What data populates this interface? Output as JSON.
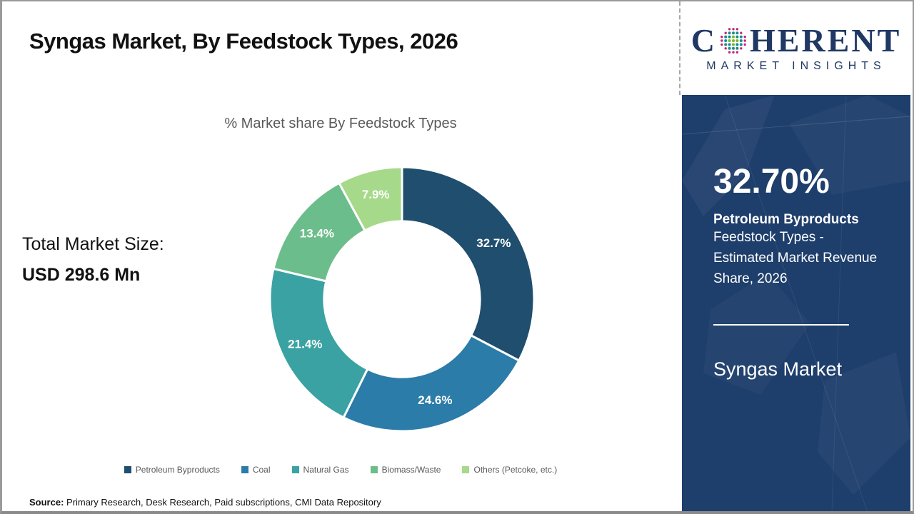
{
  "header": {
    "title": "Syngas Market, By Feedstock Types, 2026"
  },
  "logo": {
    "word_start": "C",
    "word_end": "HERENT",
    "subtitle": "MARKET INSIGHTS",
    "navy": "#1F3864",
    "globe_colors": {
      "outer": "#C2257C",
      "mid": "#1C8C8C",
      "center": "#76B82A"
    }
  },
  "chart": {
    "subtitle": "% Market share By Feedstock Types",
    "total_label": "Total Market Size:",
    "total_value": "USD 298.6 Mn"
  },
  "chart_data": {
    "type": "pie",
    "donut": true,
    "title": "% Market share By Feedstock Types",
    "categories": [
      "Petroleum Byproducts",
      "Coal",
      "Natural Gas",
      "Biomass/Waste",
      "Others (Petcoke, etc.)"
    ],
    "values": [
      32.7,
      24.6,
      21.4,
      13.4,
      7.9
    ],
    "slice_labels": [
      "32.7%",
      "24.6%",
      "21.4%",
      "13.4%",
      "7.9%"
    ],
    "colors": [
      "#1F4E6E",
      "#2B7CA9",
      "#3AA2A2",
      "#6CBD8C",
      "#A6D98A"
    ],
    "start_angle_deg": 0,
    "direction": "clockwise",
    "inner_radius_ratio": 0.59,
    "legend_position": "bottom",
    "label_color": "#ffffff"
  },
  "sidebar": {
    "stat_value": "32.70%",
    "stat_bold": "Petroleum Byproducts",
    "stat_desc": "Feedstock Types - Estimated Market Revenue Share, 2026",
    "market_name": "Syngas Market",
    "background": "#1E3E6B"
  },
  "footer": {
    "source_label": "Source:",
    "source_text": " Primary Research, Desk Research, Paid subscriptions, CMI Data Repository"
  }
}
